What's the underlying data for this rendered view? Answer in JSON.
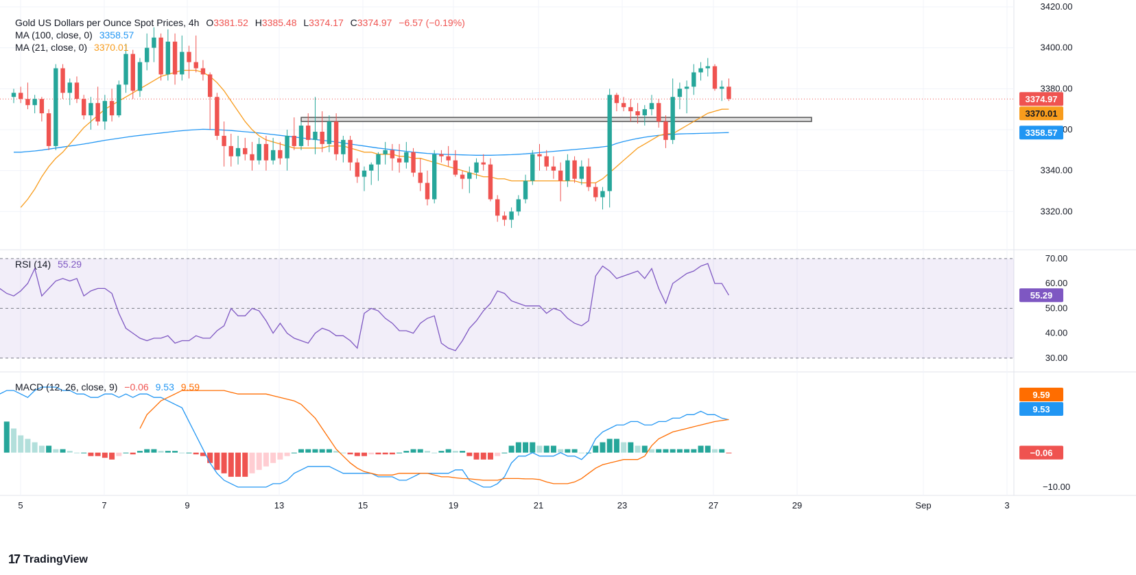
{
  "header": {
    "symbol": "Gold US Dollars per Ounce Spot Prices, 4h",
    "open_label": "O",
    "open": "3381.52",
    "high_label": "H",
    "high": "3385.48",
    "low_label": "L",
    "low": "3374.17",
    "close_label": "C",
    "close": "3374.97",
    "change": "−6.57 (−0.19%)"
  },
  "ma100_legend": {
    "label": "MA (100, close, 0)",
    "value": "3358.57"
  },
  "ma21_legend": {
    "label": "MA (21, close, 0)",
    "value": "3370.01"
  },
  "rsi_legend": {
    "label": "RSI (14)",
    "value": "55.29"
  },
  "macd_legend": {
    "label": "MACD (12, 26, close, 9)",
    "hist": "−0.06",
    "macd": "9.53",
    "signal": "9.59"
  },
  "price_badges": {
    "close": "3374.97",
    "ma21": "3370.01",
    "ma100": "3358.57"
  },
  "rsi_badge": "55.29",
  "macd_badges": {
    "signal": "9.59",
    "macd": "9.53",
    "hist": "−0.06"
  },
  "brand": "TradingView",
  "colors": {
    "up": "#26a69a",
    "down": "#ef5350",
    "ma100": "#2196f3",
    "ma21": "#f89c1c",
    "rsi": "#7e57c2",
    "macd": "#2196f3",
    "signal": "#ff6d00"
  },
  "chart_data": [
    {
      "type": "candlestick",
      "title": "Gold US Dollars per Ounce Spot Prices, 4h",
      "x_tick_labels": [
        "5",
        "7",
        "9",
        "13",
        "15",
        "19",
        "21",
        "23",
        "27",
        "29",
        "Sep",
        "3"
      ],
      "y_tick_labels": [
        "3420.00",
        "3400.00",
        "3380.00",
        "3360.00",
        "3340.00",
        "3320.00"
      ],
      "ylim": [
        3302,
        3420
      ],
      "candles": [
        [
          3376,
          3380,
          3373,
          3378
        ],
        [
          3378,
          3381,
          3373,
          3375
        ],
        [
          3375,
          3383,
          3370,
          3372
        ],
        [
          3372,
          3377,
          3368,
          3375
        ],
        [
          3375,
          3376,
          3364,
          3368
        ],
        [
          3368,
          3370,
          3350,
          3352
        ],
        [
          3352,
          3392,
          3350,
          3390
        ],
        [
          3390,
          3392,
          3375,
          3378
        ],
        [
          3378,
          3385,
          3372,
          3383
        ],
        [
          3383,
          3386,
          3373,
          3375
        ],
        [
          3375,
          3377,
          3365,
          3367
        ],
        [
          3367,
          3376,
          3360,
          3373
        ],
        [
          3373,
          3381,
          3362,
          3364
        ],
        [
          3364,
          3377,
          3360,
          3374
        ],
        [
          3374,
          3380,
          3364,
          3367
        ],
        [
          3367,
          3384,
          3366,
          3382
        ],
        [
          3382,
          3402,
          3378,
          3397
        ],
        [
          3397,
          3399,
          3375,
          3379
        ],
        [
          3379,
          3395,
          3376,
          3393
        ],
        [
          3393,
          3407,
          3389,
          3400
        ],
        [
          3400,
          3410,
          3393,
          3405
        ],
        [
          3405,
          3407,
          3384,
          3387
        ],
        [
          3387,
          3409,
          3384,
          3403
        ],
        [
          3403,
          3407,
          3382,
          3387
        ],
        [
          3387,
          3406,
          3384,
          3398
        ],
        [
          3398,
          3401,
          3385,
          3393
        ],
        [
          3393,
          3406,
          3388,
          3390
        ],
        [
          3390,
          3394,
          3384,
          3387
        ],
        [
          3387,
          3388,
          3360,
          3376
        ],
        [
          3376,
          3378,
          3355,
          3357
        ],
        [
          3357,
          3364,
          3342,
          3352
        ],
        [
          3352,
          3358,
          3342,
          3347
        ],
        [
          3347,
          3357,
          3343,
          3351
        ],
        [
          3351,
          3356,
          3345,
          3348
        ],
        [
          3348,
          3354,
          3340,
          3345
        ],
        [
          3345,
          3356,
          3343,
          3353
        ],
        [
          3353,
          3357,
          3340,
          3345
        ],
        [
          3345,
          3356,
          3343,
          3350
        ],
        [
          3350,
          3354,
          3343,
          3346
        ],
        [
          3346,
          3360,
          3340,
          3357
        ],
        [
          3357,
          3366,
          3350,
          3352
        ],
        [
          3352,
          3364,
          3350,
          3362
        ],
        [
          3362,
          3368,
          3352,
          3355
        ],
        [
          3355,
          3376,
          3348,
          3359
        ],
        [
          3359,
          3369,
          3349,
          3353
        ],
        [
          3353,
          3367,
          3349,
          3364
        ],
        [
          3364,
          3368,
          3345,
          3348
        ],
        [
          3348,
          3357,
          3344,
          3355
        ],
        [
          3355,
          3357,
          3340,
          3344
        ],
        [
          3344,
          3346,
          3334,
          3337
        ],
        [
          3337,
          3342,
          3330,
          3340
        ],
        [
          3340,
          3344,
          3333,
          3343
        ],
        [
          3343,
          3349,
          3335,
          3348
        ],
        [
          3348,
          3354,
          3343,
          3350
        ],
        [
          3350,
          3353,
          3340,
          3346
        ],
        [
          3346,
          3353,
          3339,
          3344
        ],
        [
          3344,
          3354,
          3341,
          3349
        ],
        [
          3349,
          3351,
          3337,
          3339
        ],
        [
          3339,
          3346,
          3330,
          3334
        ],
        [
          3334,
          3340,
          3323,
          3326
        ],
        [
          3326,
          3350,
          3324,
          3348
        ],
        [
          3348,
          3350,
          3344,
          3347
        ],
        [
          3347,
          3352,
          3342,
          3345
        ],
        [
          3345,
          3350,
          3337,
          3338
        ],
        [
          3338,
          3340,
          3331,
          3336
        ],
        [
          3336,
          3342,
          3329,
          3339
        ],
        [
          3339,
          3346,
          3336,
          3344
        ],
        [
          3344,
          3348,
          3340,
          3343
        ],
        [
          3343,
          3346,
          3325,
          3326
        ],
        [
          3326,
          3328,
          3315,
          3318
        ],
        [
          3318,
          3320,
          3313,
          3316
        ],
        [
          3316,
          3322,
          3312,
          3320
        ],
        [
          3320,
          3328,
          3318,
          3326
        ],
        [
          3326,
          3338,
          3324,
          3335
        ],
        [
          3335,
          3350,
          3333,
          3348
        ],
        [
          3348,
          3353,
          3340,
          3347
        ],
        [
          3347,
          3350,
          3340,
          3342
        ],
        [
          3342,
          3347,
          3336,
          3340
        ],
        [
          3340,
          3344,
          3325,
          3335
        ],
        [
          3335,
          3348,
          3332,
          3345
        ],
        [
          3345,
          3347,
          3334,
          3336
        ],
        [
          3336,
          3345,
          3333,
          3342
        ],
        [
          3342,
          3346,
          3330,
          3332
        ],
        [
          3332,
          3334,
          3325,
          3327
        ],
        [
          3327,
          3332,
          3321,
          3330
        ],
        [
          3330,
          3380,
          3322,
          3377
        ],
        [
          3377,
          3378,
          3369,
          3373
        ],
        [
          3373,
          3376,
          3369,
          3371
        ],
        [
          3371,
          3375,
          3364,
          3369
        ],
        [
          3369,
          3373,
          3363,
          3367
        ],
        [
          3367,
          3372,
          3362,
          3370
        ],
        [
          3370,
          3377,
          3367,
          3373
        ],
        [
          3373,
          3375,
          3361,
          3364
        ],
        [
          3364,
          3367,
          3351,
          3355
        ],
        [
          3355,
          3385,
          3353,
          3376
        ],
        [
          3376,
          3383,
          3370,
          3380
        ],
        [
          3380,
          3384,
          3368,
          3381
        ],
        [
          3381,
          3392,
          3377,
          3388
        ],
        [
          3388,
          3393,
          3384,
          3390
        ],
        [
          3390,
          3395,
          3386,
          3391
        ],
        [
          3391,
          3392,
          3379,
          3380
        ],
        [
          3380,
          3384,
          3374,
          3381
        ],
        [
          3381,
          3385,
          3374,
          3375
        ]
      ],
      "ma100": [
        3349,
        3349,
        3349.3,
        3349.6,
        3350,
        3350.5,
        3351,
        3351.5,
        3352,
        3352.5,
        3353,
        3353.6,
        3354.2,
        3354.8,
        3355.3,
        3355.8,
        3356.3,
        3356.8,
        3357.2,
        3357.6,
        3358,
        3358.4,
        3358.8,
        3359.2,
        3359.5,
        3359.8,
        3360,
        3360.2,
        3360.1,
        3360,
        3359.8,
        3359.6,
        3359.3,
        3359,
        3358.7,
        3358.4,
        3358,
        3357.6,
        3357.2,
        3356.8,
        3356.4,
        3356,
        3355.6,
        3355.2,
        3354.8,
        3354.4,
        3354,
        3353.5,
        3353,
        3352.5,
        3352,
        3351.5,
        3351,
        3350.6,
        3350.2,
        3349.8,
        3349.4,
        3349,
        3348.7,
        3348.4,
        3348.2,
        3348,
        3347.9,
        3347.8,
        3347.7,
        3347.6,
        3347.5,
        3347.5,
        3347.5,
        3347.6,
        3347.7,
        3347.8,
        3348,
        3348.2,
        3348.5,
        3348.8,
        3349.1,
        3349.4,
        3349.7,
        3350,
        3350.3,
        3350.6,
        3350.9,
        3351.2,
        3351.6,
        3352,
        3353.3,
        3354.2,
        3355,
        3355.7,
        3356.3,
        3356.8,
        3357.2,
        3357.5,
        3357.7,
        3357.9,
        3358,
        3358.1,
        3358.2,
        3358.3,
        3358.4,
        3358.5,
        3358.57
      ],
      "ma21": [
        3322,
        3326,
        3331,
        3337,
        3342,
        3346,
        3349,
        3353,
        3357,
        3361,
        3364,
        3367,
        3370,
        3372,
        3374,
        3376,
        3378,
        3380,
        3382,
        3384,
        3386,
        3387,
        3388,
        3389,
        3389,
        3389,
        3388,
        3386,
        3383,
        3379,
        3374,
        3369,
        3364,
        3360,
        3357,
        3355,
        3354,
        3353,
        3352,
        3351,
        3351,
        3351,
        3351,
        3351,
        3352,
        3352,
        3352,
        3351,
        3350,
        3349,
        3349,
        3348,
        3348,
        3348,
        3347,
        3347,
        3346,
        3346,
        3345,
        3344,
        3343,
        3342,
        3341,
        3340,
        3339,
        3338,
        3337,
        3337,
        3336,
        3336,
        3335,
        3335,
        3335,
        3335,
        3335,
        3335,
        3335,
        3335,
        3335,
        3335,
        3334,
        3334,
        3334,
        3336,
        3339,
        3342,
        3345,
        3348,
        3351,
        3353,
        3355,
        3357,
        3358,
        3358,
        3360,
        3362,
        3364,
        3366,
        3368,
        3369,
        3370,
        3370.01
      ],
      "horizontal_zone": [
        3364,
        3366
      ]
    },
    {
      "type": "line",
      "title": "RSI (14)",
      "y_tick_labels": [
        "70.00",
        "60.00",
        "50.00",
        "40.00",
        "30.00"
      ],
      "ylim": [
        25,
        73
      ],
      "bands": [
        30,
        50,
        70
      ],
      "values": [
        69,
        69,
        67,
        66,
        53,
        65,
        61,
        62,
        57,
        57,
        55,
        58,
        56,
        55,
        57,
        60,
        66,
        55,
        58,
        61,
        62,
        61,
        62,
        55,
        57,
        58,
        58,
        56,
        48,
        42,
        40,
        38,
        37,
        38,
        38,
        39,
        36,
        37,
        37,
        39,
        38,
        38,
        41,
        43,
        50,
        47,
        47,
        50,
        49,
        45,
        40,
        44,
        40,
        38,
        37,
        36,
        40,
        42,
        41,
        39,
        39,
        37,
        34,
        48,
        50,
        49,
        46,
        44,
        41,
        41,
        40,
        44,
        46,
        47,
        36,
        34,
        33,
        37,
        42,
        45,
        49,
        52,
        57,
        56,
        53,
        52,
        51,
        51,
        51,
        48,
        50,
        49,
        46,
        44,
        43,
        45,
        63,
        67,
        65,
        62,
        63,
        64,
        65,
        62,
        66,
        58,
        52,
        60,
        62,
        64,
        65,
        67,
        68,
        60,
        60,
        55.29
      ]
    },
    {
      "type": "line",
      "title": "MACD (12, 26, close, 9)",
      "y_tick_labels": [
        "−10.00"
      ],
      "ylim": [
        -12,
        23
      ],
      "macd": [
        17,
        18,
        18,
        17,
        16,
        18,
        19,
        19,
        19,
        18,
        18,
        17,
        17,
        16,
        16,
        17,
        17,
        16,
        17,
        16,
        17,
        17,
        16,
        16,
        15,
        14,
        13,
        9,
        5,
        1,
        -3,
        -6,
        -8,
        -9,
        -10,
        -10,
        -10,
        -10,
        -10,
        -9,
        -9,
        -8,
        -6,
        -5,
        -4,
        -4,
        -4,
        -4,
        -5,
        -6,
        -6,
        -6,
        -6,
        -6,
        -7,
        -7,
        -7,
        -8,
        -8,
        -7,
        -6,
        -6,
        -6,
        -6,
        -6,
        -5,
        -5,
        -8,
        -9,
        -10,
        -10,
        -9,
        -7,
        -3,
        -1,
        -1,
        0,
        -1,
        -1,
        -1,
        0,
        -1,
        -1,
        -2,
        0,
        4,
        6,
        7,
        8,
        8,
        9,
        9,
        8,
        8,
        9,
        9,
        10,
        10,
        11,
        11,
        12,
        11,
        11,
        10,
        9.53
      ],
      "signal": [
        7,
        11,
        13,
        15,
        16,
        17,
        18,
        18,
        18,
        18,
        18,
        18,
        18,
        17.5,
        17,
        17,
        17,
        17,
        17,
        16.5,
        16,
        15.5,
        15,
        14,
        12,
        10,
        7,
        4,
        1,
        -1,
        -3,
        -4.5,
        -5.5,
        -6,
        -6.5,
        -6.5,
        -6.5,
        -6,
        -6,
        -6,
        -6,
        -6,
        -6.5,
        -7,
        -7,
        -7.3,
        -7.5,
        -7.6,
        -7.8,
        -8,
        -8,
        -8,
        -7.5,
        -7.5,
        -7.5,
        -7.6,
        -7.6,
        -7.8,
        -8.5,
        -9,
        -9,
        -9,
        -8.5,
        -7.5,
        -6,
        -4.5,
        -3.5,
        -3,
        -2.5,
        -2,
        -2,
        -2,
        -1,
        2,
        4,
        5,
        6,
        6.5,
        7,
        7.5,
        8,
        8.5,
        9,
        9.3,
        9.59
      ],
      "histogram": [
        9,
        7,
        5,
        4,
        3,
        2,
        2,
        1,
        1,
        0.5,
        0,
        0,
        -1,
        -1,
        -1.5,
        -2,
        -1,
        0,
        -0.5,
        0.5,
        1,
        1,
        0.5,
        0.5,
        0.5,
        0,
        0,
        -0.5,
        -1,
        -3,
        -5,
        -6,
        -7,
        -7,
        -7,
        -6,
        -5,
        -4,
        -3,
        -2,
        -1,
        0,
        1,
        1,
        1,
        1,
        1,
        0.5,
        0,
        -0.5,
        -1,
        -1,
        -0.5,
        -0.5,
        -0.5,
        -0.5,
        0,
        0.5,
        1,
        1,
        0.5,
        0,
        0.5,
        1,
        0.5,
        0.5,
        -1,
        -2,
        -2,
        -2,
        -1,
        0,
        2,
        3,
        3,
        3,
        2,
        2,
        2,
        1,
        1,
        1,
        0,
        0,
        2,
        3,
        4,
        4,
        3,
        3,
        2,
        2,
        1,
        1,
        1,
        1,
        1,
        1,
        1,
        2,
        2,
        1,
        1,
        -0.06
      ]
    }
  ]
}
